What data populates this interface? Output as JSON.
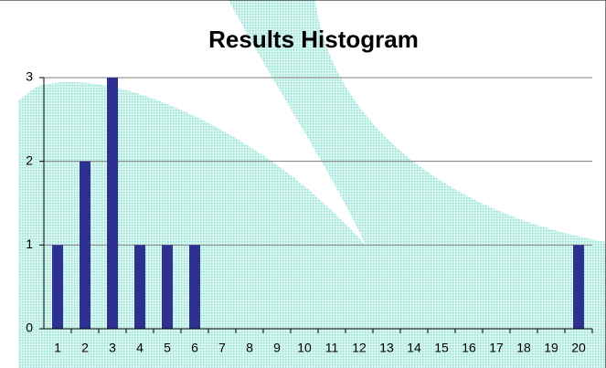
{
  "chart_data": {
    "type": "bar",
    "title": "Results Histogram",
    "categories": [
      "1",
      "2",
      "3",
      "4",
      "5",
      "6",
      "7",
      "8",
      "9",
      "10",
      "11",
      "12",
      "13",
      "14",
      "15",
      "16",
      "17",
      "18",
      "19",
      "20"
    ],
    "values": [
      1,
      2,
      3,
      1,
      1,
      1,
      0,
      0,
      0,
      0,
      0,
      0,
      0,
      0,
      0,
      0,
      0,
      0,
      0,
      1
    ],
    "color": "#2e3192",
    "ylim": [
      0,
      3
    ],
    "yticks": [
      0,
      1,
      2,
      3
    ],
    "grid": true
  }
}
